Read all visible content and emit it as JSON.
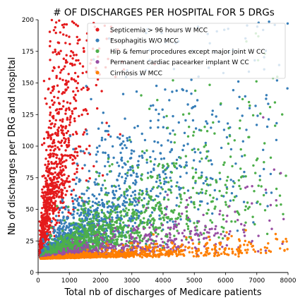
{
  "chart_data": {
    "type": "scatter",
    "title": "# OF DISCHARGES PER HOSPITAL FOR 5 DRGs",
    "xlabel": "Total nb of discharges of Medicare patients",
    "ylabel": "Nb of discharges per DRG and hospital",
    "xlim": [
      0,
      8000
    ],
    "ylim": [
      0,
      200
    ],
    "x_ticks": [
      "0",
      "1000",
      "2000",
      "3000",
      "4000",
      "5000",
      "6000",
      "7000",
      "8000"
    ],
    "y_ticks": [
      "0",
      "25",
      "50",
      "75",
      "100",
      "125",
      "150",
      "175",
      "200"
    ],
    "grid": false,
    "legend_position": "top-right",
    "series": [
      {
        "name": "Septicemia > 96 hours W MCC",
        "color": "#e41a1c",
        "distribution": {
          "x_scale": 700,
          "x_min": 50,
          "y_base": 11,
          "y_factor": 0.13,
          "y_spread": 0.55,
          "count": 1200
        }
      },
      {
        "name": "Esophagitis W/O MCC",
        "color": "#377eb8",
        "distribution": {
          "x_scale": 2300,
          "x_min": 80,
          "y_base": 11,
          "y_factor": 0.017,
          "y_spread": 0.6,
          "count": 1400
        }
      },
      {
        "name": "Hip & femur procedures except major joint W CC",
        "color": "#4daf4a",
        "distribution": {
          "x_scale": 2600,
          "x_min": 80,
          "y_base": 11,
          "y_factor": 0.0095,
          "y_spread": 0.55,
          "count": 1400
        }
      },
      {
        "name": "Permanent cardiac pacearker implant W CC",
        "color": "#984ea3",
        "distribution": {
          "x_scale": 2600,
          "x_min": 80,
          "y_base": 11,
          "y_factor": 0.003,
          "y_spread": 0.6,
          "count": 700
        }
      },
      {
        "name": "Cirrhosis W MCC",
        "color": "#ff7f00",
        "distribution": {
          "x_scale": 2400,
          "x_min": 80,
          "y_base": 11,
          "y_factor": 0.0012,
          "y_spread": 0.5,
          "count": 900
        }
      }
    ]
  }
}
